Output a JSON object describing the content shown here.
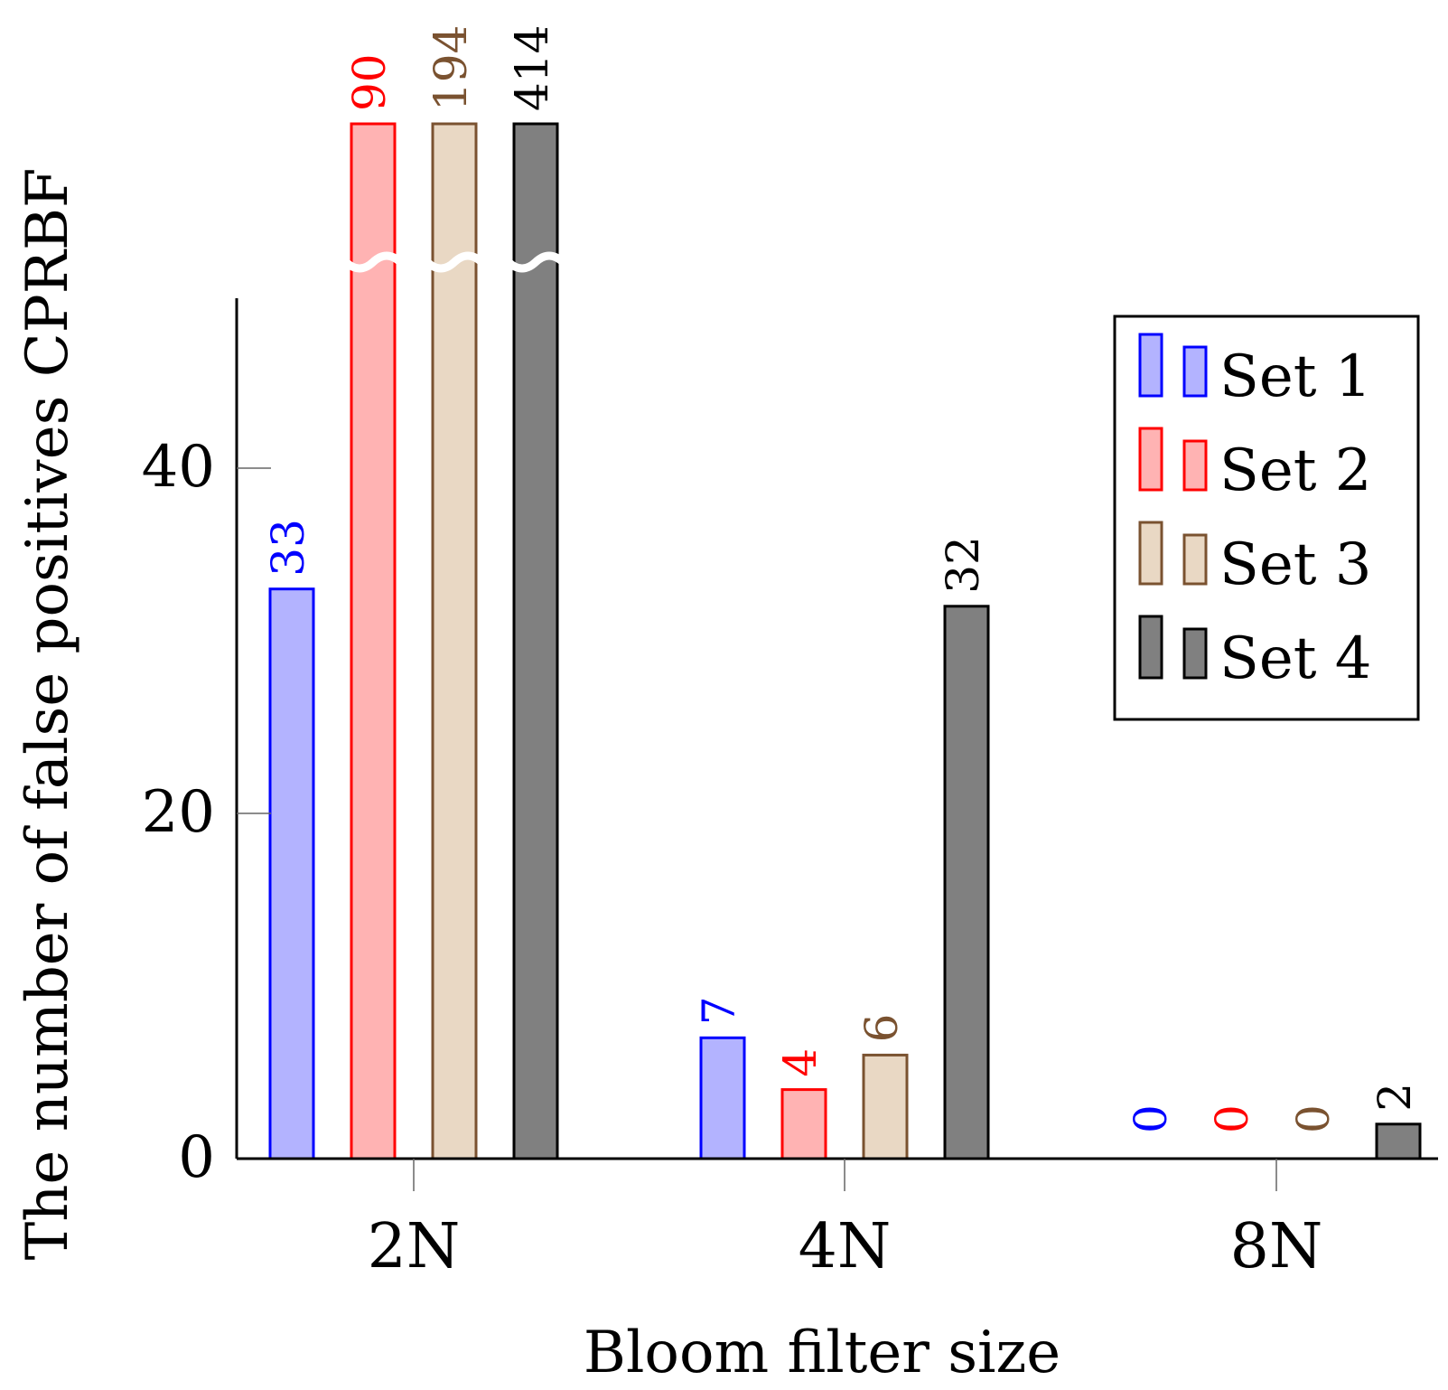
{
  "chart_data": {
    "type": "bar",
    "title": "",
    "xlabel": "Bloom filter size",
    "ylabel": "The number of false positives CPRBF",
    "categories": [
      "2N",
      "4N",
      "8N"
    ],
    "ylim": [
      0,
      50
    ],
    "yticks": [
      0,
      20,
      40
    ],
    "axis_break": true,
    "series": [
      {
        "name": "Set 1",
        "values": [
          33,
          7,
          0
        ],
        "labels": [
          "33",
          "7",
          "0"
        ],
        "fill": "#b3b3ff",
        "stroke": "#0000ff"
      },
      {
        "name": "Set 2",
        "values": [
          90,
          4,
          0
        ],
        "labels": [
          "90",
          "4",
          "0"
        ],
        "fill": "#ffb3b3",
        "stroke": "#ff0000"
      },
      {
        "name": "Set 3",
        "values": [
          194,
          6,
          0
        ],
        "labels": [
          "194",
          "6",
          "0"
        ],
        "fill": "#e9d8c4",
        "stroke": "#7a5230"
      },
      {
        "name": "Set 4",
        "values": [
          414,
          32,
          2
        ],
        "labels": [
          "414",
          "32",
          "2"
        ],
        "fill": "#808080",
        "stroke": "#000000"
      }
    ],
    "legend_position": "top-right"
  }
}
